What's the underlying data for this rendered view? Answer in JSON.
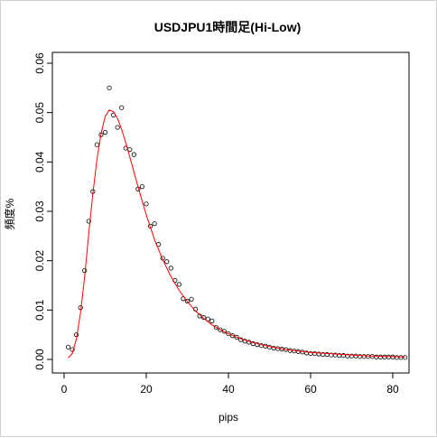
{
  "chart_data": {
    "type": "scatter",
    "title": "USDJPU1時間足(Hi-Low)",
    "xlabel": "pips",
    "ylabel": "頻度%",
    "xlim": [
      0,
      83
    ],
    "ylim": [
      0,
      0.06
    ],
    "xticks": [
      "0",
      "20",
      "40",
      "60",
      "80"
    ],
    "yticks": [
      "0.00",
      "0.01",
      "0.02",
      "0.03",
      "0.04",
      "0.05",
      "0.06"
    ],
    "grid": false,
    "series": [
      {
        "kind": "points",
        "color": "#000000",
        "x": [
          1,
          2,
          3,
          4,
          5,
          6,
          7,
          8,
          9,
          10,
          11,
          12,
          13,
          14,
          15,
          16,
          17,
          18,
          19,
          20,
          21,
          22,
          23,
          24,
          25,
          26,
          27,
          28,
          29,
          30,
          31,
          32,
          33,
          34,
          35,
          36,
          37,
          38,
          39,
          40,
          41,
          42,
          43,
          44,
          45,
          46,
          47,
          48,
          49,
          50,
          51,
          52,
          53,
          54,
          55,
          56,
          57,
          58,
          59,
          60,
          61,
          62,
          63,
          64,
          65,
          66,
          67,
          68,
          69,
          70,
          71,
          72,
          73,
          74,
          75,
          76,
          77,
          78,
          79,
          80,
          81,
          82,
          83
        ],
        "y": [
          0.0025,
          0.002,
          0.005,
          0.0105,
          0.018,
          0.028,
          0.034,
          0.0435,
          0.0455,
          0.046,
          0.055,
          0.0495,
          0.047,
          0.051,
          0.0428,
          0.0425,
          0.0415,
          0.0345,
          0.035,
          0.0315,
          0.027,
          0.0275,
          0.0233,
          0.0205,
          0.0198,
          0.0185,
          0.016,
          0.0152,
          0.0123,
          0.0118,
          0.0122,
          0.0102,
          0.0088,
          0.0085,
          0.0082,
          0.0078,
          0.0065,
          0.006,
          0.0057,
          0.0052,
          0.0048,
          0.0045,
          0.004,
          0.0037,
          0.0035,
          0.0032,
          0.003,
          0.0028,
          0.0027,
          0.0025,
          0.0023,
          0.0022,
          0.0021,
          0.002,
          0.0018,
          0.0017,
          0.0016,
          0.0015,
          0.0013,
          0.0012,
          0.0012,
          0.0011,
          0.001,
          0.001,
          0.0009,
          0.0009,
          0.0008,
          0.0008,
          0.0007,
          0.0007,
          0.0007,
          0.0006,
          0.0006,
          0.0006,
          0.0006,
          0.0005,
          0.0005,
          0.0005,
          0.0005,
          0.0005,
          0.0004,
          0.0004,
          0.0004
        ]
      },
      {
        "kind": "line",
        "color": "#ff0000",
        "x": [
          1,
          2,
          3,
          4,
          5,
          6,
          7,
          8,
          9,
          10,
          11,
          12,
          13,
          14,
          15,
          16,
          17,
          18,
          19,
          20,
          22,
          24,
          26,
          28,
          30,
          32,
          34,
          36,
          38,
          40,
          42,
          44,
          46,
          48,
          50,
          52,
          54,
          56,
          58,
          60,
          62,
          64,
          66,
          68,
          70,
          72,
          74,
          76,
          78,
          80,
          82,
          83
        ],
        "y": [
          0.0003,
          0.0012,
          0.0042,
          0.0095,
          0.0168,
          0.0255,
          0.0335,
          0.0405,
          0.0458,
          0.0492,
          0.0505,
          0.0502,
          0.0488,
          0.0466,
          0.0439,
          0.041,
          0.038,
          0.035,
          0.0321,
          0.0293,
          0.0243,
          0.0202,
          0.0168,
          0.014,
          0.0117,
          0.0098,
          0.0083,
          0.007,
          0.006,
          0.0052,
          0.0045,
          0.0039,
          0.0034,
          0.003,
          0.0026,
          0.0023,
          0.002,
          0.0018,
          0.0016,
          0.0014,
          0.0013,
          0.0012,
          0.0011,
          0.001,
          0.0009,
          0.0008,
          0.0007,
          0.0007,
          0.0006,
          0.0006,
          0.0005,
          0.0005
        ]
      }
    ]
  }
}
